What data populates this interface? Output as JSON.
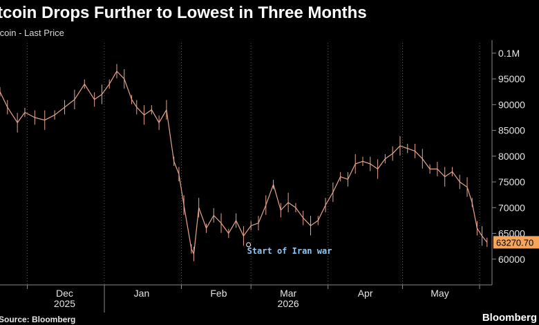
{
  "chart_data": {
    "type": "line",
    "title": "tcoin Drops Further to Lowest in Three Months",
    "subtitle": "tcoin - Last Price",
    "source": "Source: Bloomberg",
    "brand": "Bloomberg",
    "x_axis": {
      "type": "date",
      "range": [
        "2025-11-20",
        "2026-06-06"
      ],
      "ticks": [
        {
          "date": "2025-12-01",
          "label": "Dec"
        },
        {
          "date": "2026-01-01",
          "label": "Jan"
        },
        {
          "date": "2026-02-01",
          "label": "Feb"
        },
        {
          "date": "2026-03-01",
          "label": "Mar"
        },
        {
          "date": "2026-04-01",
          "label": "Apr"
        },
        {
          "date": "2026-05-01",
          "label": "May"
        }
      ],
      "boundaries": [
        "2025-12-01",
        "2026-01-01",
        "2026-02-01",
        "2026-03-01",
        "2026-04-01",
        "2026-05-01",
        "2026-06-01"
      ],
      "years": [
        {
          "date": "2025-12-01",
          "label": "2025"
        },
        {
          "date": "2026-03-01",
          "label": "2026"
        }
      ]
    },
    "y_axis": {
      "range": [
        55000,
        102000
      ],
      "position": "right",
      "ticks": [
        {
          "value": 60000,
          "label": "60000"
        },
        {
          "value": 65000,
          "label": "65000"
        },
        {
          "value": 70000,
          "label": "70000"
        },
        {
          "value": 75000,
          "label": "75000"
        },
        {
          "value": 80000,
          "label": "80000"
        },
        {
          "value": 85000,
          "label": "85000"
        },
        {
          "value": 90000,
          "label": "90000"
        },
        {
          "value": 95000,
          "label": "95000"
        },
        {
          "value": 100000,
          "label": "0.1M"
        }
      ]
    },
    "grid": "vertical dotted at month boundaries",
    "series": [
      {
        "color": "#e8a58e",
        "x": [
          "2025-11-20",
          "2025-11-23",
          "2025-11-27",
          "2025-11-30",
          "2025-12-04",
          "2025-12-08",
          "2025-12-12",
          "2025-12-16",
          "2025-12-20",
          "2025-12-24",
          "2025-12-28",
          "2025-12-31",
          "2026-01-03",
          "2026-01-06",
          "2026-01-09",
          "2026-01-12",
          "2026-01-14",
          "2026-01-17",
          "2026-01-20",
          "2026-01-23",
          "2026-01-26",
          "2026-01-29",
          "2026-01-31",
          "2026-02-02",
          "2026-02-05",
          "2026-02-06",
          "2026-02-08",
          "2026-02-11",
          "2026-02-14",
          "2026-02-17",
          "2026-02-20",
          "2026-02-23",
          "2026-02-26",
          "2026-03-01",
          "2026-03-04",
          "2026-03-07",
          "2026-03-10",
          "2026-03-13",
          "2026-03-16",
          "2026-03-19",
          "2026-03-22",
          "2026-03-25",
          "2026-03-28",
          "2026-03-31",
          "2026-04-03",
          "2026-04-06",
          "2026-04-09",
          "2026-04-12",
          "2026-04-15",
          "2026-04-18",
          "2026-04-21",
          "2026-04-24",
          "2026-04-27",
          "2026-04-30",
          "2026-05-03",
          "2026-05-06",
          "2026-05-09",
          "2026-05-12",
          "2026-05-15",
          "2026-05-18",
          "2026-05-21",
          "2026-05-24",
          "2026-05-27",
          "2026-05-29",
          "2026-05-31",
          "2026-06-02",
          "2026-06-04"
        ],
        "y": [
          92500,
          89500,
          86500,
          88500,
          87500,
          87000,
          88000,
          89500,
          91000,
          94000,
          91000,
          92000,
          94000,
          96500,
          95000,
          91000,
          89500,
          88000,
          89000,
          86500,
          89000,
          79000,
          76500,
          70500,
          62000,
          61000,
          70000,
          66000,
          68500,
          67000,
          65000,
          67500,
          64500,
          66500,
          67000,
          70500,
          74500,
          69500,
          71000,
          70000,
          68000,
          66500,
          67500,
          70500,
          73000,
          76000,
          75500,
          78500,
          79000,
          78500,
          77500,
          79500,
          80500,
          82000,
          81500,
          81000,
          79500,
          77500,
          77500,
          76000,
          77000,
          75000,
          74000,
          71000,
          66000,
          64500,
          63270.7
        ]
      }
    ],
    "last_value_label": "63270.70",
    "annotations": [
      {
        "date": "2026-02-28",
        "value": 62800,
        "text": "Start of Iran war",
        "color": "#8fc7f2"
      }
    ]
  }
}
